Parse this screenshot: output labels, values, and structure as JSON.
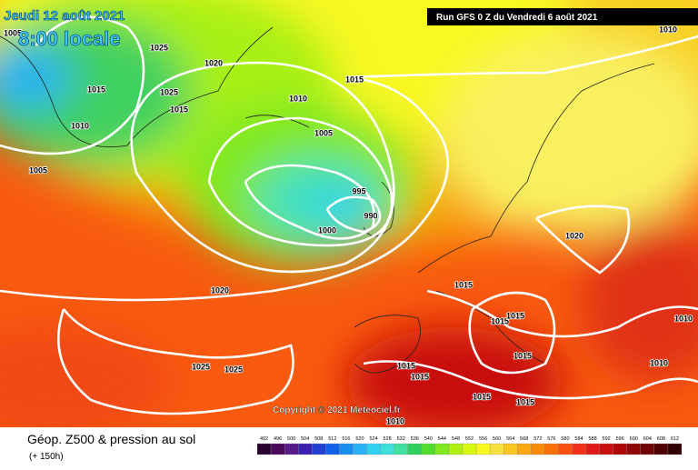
{
  "header": {
    "date": "Jeudi 12 août 2021",
    "time": "8:00 locale",
    "run": "Run GFS 0 Z du Vendredi 6 août 2021"
  },
  "copyright": "Copyright © 2021 Meteociel.fr",
  "footer": {
    "title": "Géop. Z500 & pression au sol",
    "lead": "(+ 150h)"
  },
  "isobar_labels": [
    "1005",
    "1025",
    "1020",
    "1015",
    "1025",
    "1015",
    "1010",
    "1005",
    "1010",
    "1015",
    "1005",
    "995",
    "990",
    "1000",
    "1020",
    "1015",
    "1020",
    "1015",
    "1015",
    "1015",
    "1015",
    "1025",
    "1025",
    "1015",
    "1015",
    "1015",
    "1010",
    "1010",
    "1010",
    "1010"
  ],
  "scale": {
    "labels": [
      "492",
      "496",
      "500",
      "504",
      "508",
      "512",
      "516",
      "520",
      "524",
      "528",
      "532",
      "536",
      "540",
      "544",
      "548",
      "552",
      "556",
      "560",
      "564",
      "568",
      "572",
      "576",
      "580",
      "584",
      "588",
      "592",
      "596",
      "600",
      "604",
      "608",
      "612"
    ],
    "colors": [
      "#2b0033",
      "#4b0a5c",
      "#5a1a8a",
      "#3b1fb0",
      "#2140d0",
      "#1060e8",
      "#1a8cf0",
      "#2ab0f5",
      "#30d0f0",
      "#40e0d8",
      "#40e0a0",
      "#30d060",
      "#50dc30",
      "#80e820",
      "#b0f010",
      "#d8f810",
      "#f8f820",
      "#f8e040",
      "#f8c820",
      "#f8a810",
      "#f88c08",
      "#f87008",
      "#f85010",
      "#f03018",
      "#e01818",
      "#c81010",
      "#b00808",
      "#900808",
      "#700404",
      "#500000",
      "#300000"
    ]
  }
}
